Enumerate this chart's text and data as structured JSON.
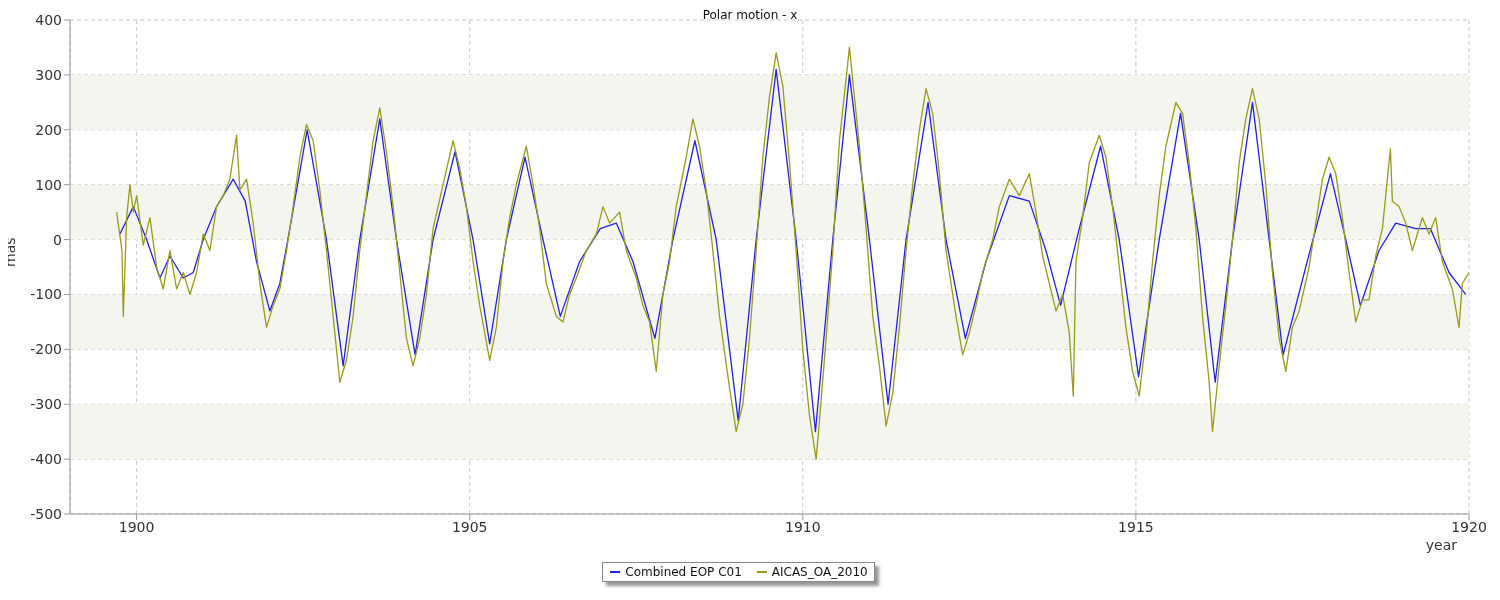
{
  "chart_data": {
    "type": "line",
    "title": "Polar motion - x",
    "xlabel": "year",
    "ylabel": "mas",
    "xlim": [
      1899,
      1920
    ],
    "xticks": [
      1900,
      1905,
      1910,
      1915,
      1920
    ],
    "ylim": [
      -500,
      400
    ],
    "yticks": [
      -500,
      -400,
      -300,
      -200,
      -100,
      0,
      100,
      200,
      300,
      400
    ],
    "grid": true,
    "legend": "bottom",
    "marker": "none",
    "line_style": "solid",
    "bands": [
      {
        "axis": "y",
        "from": 200,
        "to": 300,
        "color": "#f5f5f0"
      },
      {
        "axis": "y",
        "from": 0,
        "to": 100,
        "color": "#f5f5f0"
      },
      {
        "axis": "y",
        "from": -200,
        "to": -100,
        "color": "#f5f5f0"
      },
      {
        "axis": "y",
        "from": -400,
        "to": -300,
        "color": "#f5f5f0"
      }
    ],
    "series": [
      {
        "name": "Combined EOP C01",
        "color": "#2222dd",
        "x": [
          1899.75,
          1899.95,
          1900.15,
          1900.35,
          1900.5,
          1900.7,
          1900.85,
          1901.0,
          1901.2,
          1901.45,
          1901.63,
          1901.8,
          1902.0,
          1902.15,
          1902.3,
          1902.56,
          1902.85,
          1903.1,
          1903.35,
          1903.65,
          1903.9,
          1904.18,
          1904.45,
          1904.78,
          1905.05,
          1905.3,
          1905.55,
          1905.83,
          1906.1,
          1906.36,
          1906.65,
          1906.96,
          1907.2,
          1907.45,
          1907.78,
          1908.05,
          1908.38,
          1908.7,
          1909.03,
          1909.3,
          1909.6,
          1909.9,
          1910.19,
          1910.45,
          1910.7,
          1911.0,
          1911.28,
          1911.55,
          1911.88,
          1912.15,
          1912.44,
          1912.75,
          1913.1,
          1913.4,
          1913.65,
          1913.87,
          1914.15,
          1914.47,
          1914.75,
          1915.04,
          1915.35,
          1915.67,
          1915.95,
          1916.19,
          1916.45,
          1916.75,
          1917.0,
          1917.21,
          1917.55,
          1917.92,
          1918.15,
          1918.37,
          1918.65,
          1918.9,
          1919.2,
          1919.42,
          1919.7,
          1919.95
        ],
        "values": [
          10,
          60,
          0,
          -70,
          -30,
          -70,
          -60,
          0,
          60,
          110,
          70,
          -40,
          -130,
          -80,
          20,
          200,
          0,
          -230,
          0,
          220,
          0,
          -210,
          0,
          160,
          0,
          -190,
          0,
          150,
          0,
          -140,
          -40,
          20,
          30,
          -40,
          -180,
          0,
          180,
          0,
          -330,
          0,
          310,
          0,
          -350,
          0,
          300,
          0,
          -300,
          0,
          250,
          0,
          -180,
          -40,
          80,
          70,
          -20,
          -120,
          20,
          170,
          0,
          -250,
          0,
          230,
          0,
          -260,
          0,
          250,
          0,
          -210,
          -50,
          120,
          0,
          -120,
          -20,
          30,
          20,
          20,
          -60,
          -100
        ]
      },
      {
        "name": "AICAS_OA_2010",
        "color": "#9a9a1c",
        "x": [
          1899.7,
          1899.78,
          1899.8,
          1899.85,
          1899.9,
          1899.95,
          1900.0,
          1900.1,
          1900.2,
          1900.3,
          1900.4,
          1900.5,
          1900.6,
          1900.7,
          1900.8,
          1900.9,
          1901.0,
          1901.1,
          1901.2,
          1901.3,
          1901.4,
          1901.5,
          1901.55,
          1901.65,
          1901.75,
          1901.85,
          1901.95,
          1902.05,
          1902.15,
          1902.25,
          1902.35,
          1902.45,
          1902.55,
          1902.65,
          1902.75,
          1902.85,
          1902.95,
          1903.05,
          1903.15,
          1903.25,
          1903.35,
          1903.45,
          1903.55,
          1903.65,
          1903.75,
          1903.85,
          1903.95,
          1904.05,
          1904.15,
          1904.25,
          1904.35,
          1904.45,
          1904.6,
          1904.75,
          1904.85,
          1904.95,
          1905.05,
          1905.15,
          1905.3,
          1905.4,
          1905.5,
          1905.6,
          1905.7,
          1905.85,
          1905.95,
          1906.05,
          1906.15,
          1906.3,
          1906.4,
          1906.5,
          1906.6,
          1906.75,
          1906.9,
          1907.0,
          1907.1,
          1907.25,
          1907.35,
          1907.5,
          1907.6,
          1907.7,
          1907.8,
          1907.9,
          1908.0,
          1908.1,
          1908.25,
          1908.35,
          1908.45,
          1908.55,
          1908.65,
          1908.75,
          1908.9,
          1909.0,
          1909.1,
          1909.2,
          1909.3,
          1909.4,
          1909.5,
          1909.6,
          1909.7,
          1909.8,
          1909.9,
          1910.0,
          1910.1,
          1910.2,
          1910.25,
          1910.35,
          1910.45,
          1910.55,
          1910.7,
          1910.75,
          1910.85,
          1910.95,
          1911.05,
          1911.15,
          1911.25,
          1911.35,
          1911.45,
          1911.55,
          1911.65,
          1911.75,
          1911.85,
          1911.95,
          1912.05,
          1912.15,
          1912.3,
          1912.4,
          1912.5,
          1912.6,
          1912.7,
          1912.85,
          1912.95,
          1913.1,
          1913.25,
          1913.4,
          1913.5,
          1913.6,
          1913.7,
          1913.8,
          1913.9,
          1914.0,
          1914.06,
          1914.1,
          1914.2,
          1914.3,
          1914.45,
          1914.55,
          1914.65,
          1914.75,
          1914.85,
          1914.95,
          1915.05,
          1915.15,
          1915.25,
          1915.35,
          1915.45,
          1915.6,
          1915.7,
          1915.8,
          1915.9,
          1916.0,
          1916.1,
          1916.15,
          1916.25,
          1916.35,
          1916.45,
          1916.55,
          1916.65,
          1916.75,
          1916.85,
          1916.95,
          1917.05,
          1917.15,
          1917.25,
          1917.35,
          1917.45,
          1917.6,
          1917.7,
          1917.8,
          1917.9,
          1918.0,
          1918.1,
          1918.2,
          1918.3,
          1918.4,
          1918.5,
          1918.6,
          1918.7,
          1918.82,
          1918.85,
          1918.95,
          1919.05,
          1919.15,
          1919.3,
          1919.4,
          1919.5,
          1919.6,
          1919.75,
          1919.85,
          1919.9,
          1920.0
        ],
        "values": [
          50,
          -20,
          -140,
          40,
          100,
          50,
          80,
          -10,
          40,
          -50,
          -90,
          -20,
          -90,
          -60,
          -100,
          -60,
          10,
          -20,
          60,
          80,
          110,
          190,
          90,
          110,
          30,
          -80,
          -160,
          -120,
          -90,
          -20,
          60,
          150,
          210,
          180,
          90,
          -20,
          -140,
          -260,
          -220,
          -140,
          -20,
          80,
          180,
          240,
          160,
          60,
          -60,
          -180,
          -230,
          -180,
          -100,
          20,
          100,
          180,
          130,
          60,
          -40,
          -120,
          -220,
          -160,
          -40,
          40,
          100,
          170,
          100,
          20,
          -80,
          -140,
          -150,
          -100,
          -70,
          -20,
          10,
          60,
          30,
          50,
          -20,
          -70,
          -120,
          -150,
          -240,
          -100,
          -40,
          60,
          150,
          220,
          170,
          90,
          -20,
          -140,
          -270,
          -350,
          -300,
          -180,
          -20,
          150,
          260,
          340,
          280,
          140,
          -20,
          -200,
          -320,
          -400,
          -330,
          -180,
          -20,
          180,
          350,
          290,
          170,
          20,
          -140,
          -230,
          -340,
          -280,
          -160,
          -20,
          100,
          200,
          275,
          230,
          120,
          -20,
          -140,
          -210,
          -170,
          -120,
          -60,
          0,
          60,
          110,
          80,
          120,
          50,
          -30,
          -80,
          -130,
          -100,
          -170,
          -285,
          -40,
          40,
          140,
          190,
          150,
          60,
          -50,
          -160,
          -240,
          -285,
          -180,
          -40,
          80,
          170,
          250,
          230,
          140,
          20,
          -140,
          -260,
          -350,
          -230,
          -120,
          0,
          140,
          220,
          275,
          220,
          100,
          -60,
          -180,
          -240,
          -160,
          -130,
          -50,
          30,
          110,
          150,
          120,
          40,
          -60,
          -150,
          -110,
          -110,
          -30,
          20,
          165,
          70,
          60,
          30,
          -20,
          40,
          10,
          40,
          -40,
          -90,
          -160,
          -80,
          -60
        ]
      }
    ]
  }
}
